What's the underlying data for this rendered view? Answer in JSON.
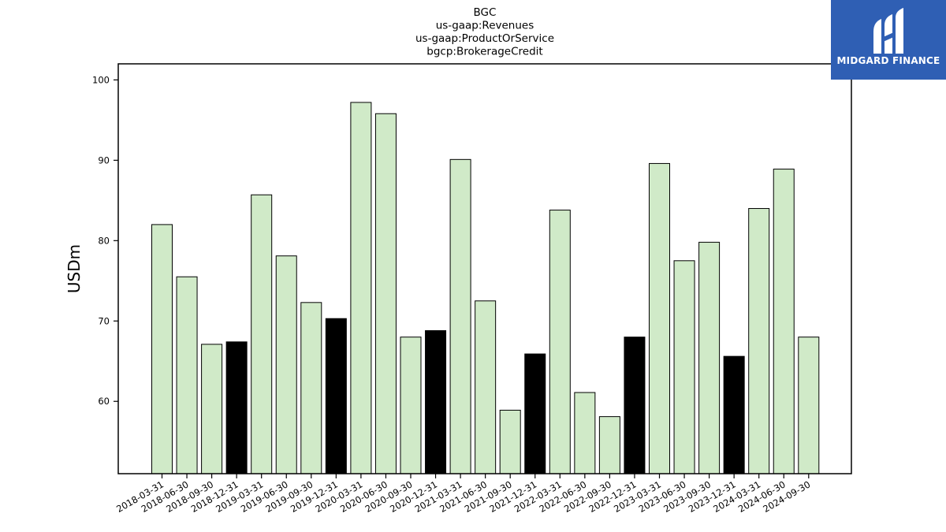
{
  "logo": {
    "text": "MIDGARD FINANCE",
    "background": "#2f5fb4"
  },
  "chart_data": {
    "type": "bar",
    "title_lines": [
      "BGC",
      "us-gaap:Revenues",
      "us-gaap:ProductOrService",
      "bgcp:BrokerageCredit"
    ],
    "xlabel": "",
    "ylabel": "USDm",
    "ylim": [
      51,
      102
    ],
    "yticks": [
      60,
      70,
      80,
      90,
      100
    ],
    "grid": false,
    "colors": {
      "normal": "#d0eac8",
      "year_end": "#000000",
      "edge": "#000000"
    },
    "categories": [
      "2018-03-31",
      "2018-06-30",
      "2018-09-30",
      "2018-12-31",
      "2019-03-31",
      "2019-06-30",
      "2019-09-30",
      "2019-12-31",
      "2020-03-31",
      "2020-06-30",
      "2020-09-30",
      "2020-12-31",
      "2021-03-31",
      "2021-06-30",
      "2021-09-30",
      "2021-12-31",
      "2022-03-31",
      "2022-06-30",
      "2022-09-30",
      "2022-12-31",
      "2023-03-31",
      "2023-06-30",
      "2023-09-30",
      "2023-12-31",
      "2024-03-31",
      "2024-06-30",
      "2024-09-30"
    ],
    "values": [
      82.0,
      75.5,
      67.1,
      67.4,
      85.7,
      78.1,
      72.3,
      70.3,
      97.2,
      95.8,
      68.0,
      68.8,
      90.1,
      72.5,
      58.9,
      65.9,
      83.8,
      61.1,
      58.1,
      68.0,
      89.6,
      77.5,
      79.8,
      65.6,
      84.0,
      88.9,
      68.0
    ],
    "highlight": [
      false,
      false,
      false,
      true,
      false,
      false,
      false,
      true,
      false,
      false,
      false,
      true,
      false,
      false,
      false,
      true,
      false,
      false,
      false,
      true,
      false,
      false,
      false,
      true,
      false,
      false,
      false
    ]
  }
}
